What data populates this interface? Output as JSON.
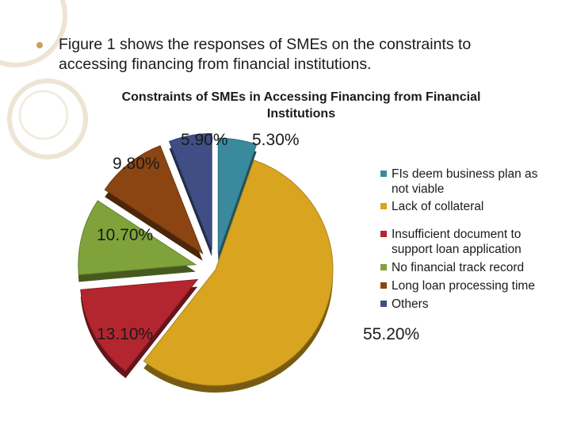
{
  "slide": {
    "bullet_text": "Figure 1 shows the responses of SMEs on the constraints to accessing financing from financial institutions."
  },
  "chart_data": {
    "type": "pie",
    "title": "Constraints of SMEs in Accessing Financing from Financial Institutions",
    "legend_position": "right",
    "slices": [
      {
        "label": "FIs deem business plan as not viable",
        "value": 5.3,
        "value_label": "5.30%",
        "color": "#3a8a9e"
      },
      {
        "label": "Lack of collateral",
        "value": 55.2,
        "value_label": "55.20%",
        "color": "#d9a520"
      },
      {
        "label": "Insufficient document to support loan application",
        "value": 13.1,
        "value_label": "13.10%",
        "color": "#b3262f"
      },
      {
        "label": "No financial track record",
        "value": 10.7,
        "value_label": "10.70%",
        "color": "#7fa33a"
      },
      {
        "label": "Long loan processing time",
        "value": 9.8,
        "value_label": "9.80%",
        "color": "#8a4512"
      },
      {
        "label": "Others",
        "value": 5.9,
        "value_label": "5.90%",
        "color": "#3f4f85"
      }
    ]
  }
}
